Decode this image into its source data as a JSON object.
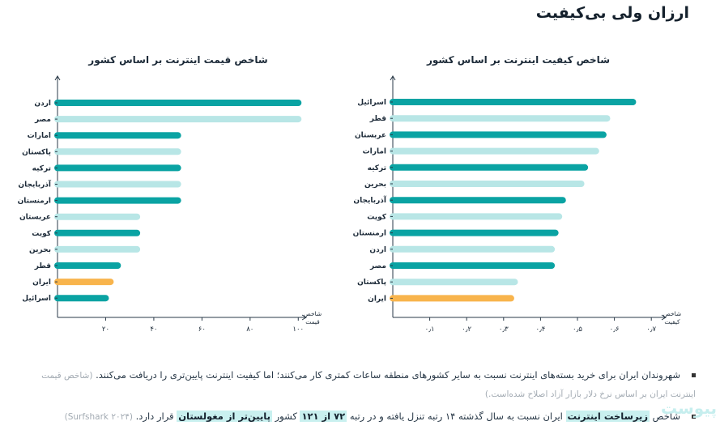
{
  "page_title": "ارزان ولی بی‌کیفیت",
  "colors": {
    "teal": "#0aa3a3",
    "light_teal": "#b8e6e6",
    "orange": "#f8b44c",
    "highlight": "#c9f0ef",
    "axis": "#2a3a48"
  },
  "chart_data": [
    {
      "type": "bar",
      "orientation": "horizontal",
      "title": "شاخص قیمت اینترنت بر اساس کشور",
      "xlabel": "شاخص قیمت",
      "categories": [
        "اردن",
        "مصر",
        "امارات",
        "پاکستان",
        "ترکیه",
        "آذربایجان",
        "ارمنستان",
        "عربستان",
        "کویت",
        "بحرین",
        "قطر",
        "ایران",
        "اسرائیل"
      ],
      "values": [
        100,
        100,
        50,
        50,
        50,
        50,
        50,
        33,
        33,
        33,
        25,
        22,
        20
      ],
      "bar_colors": [
        "teal",
        "light_teal",
        "teal",
        "light_teal",
        "teal",
        "light_teal",
        "teal",
        "light_teal",
        "teal",
        "light_teal",
        "teal",
        "orange",
        "teal"
      ],
      "xticks": [
        "۲۰",
        "۴۰",
        "۶۰",
        "۸۰",
        "۱۰۰"
      ],
      "xtick_values": [
        20,
        40,
        60,
        80,
        100
      ],
      "xlim": [
        0,
        110
      ],
      "grid": false,
      "axis_reversed": false
    },
    {
      "type": "bar",
      "orientation": "horizontal",
      "title": "شاخص کیفیت اینترنت بر اساس کشور",
      "xlabel": "شاخص کیفیت",
      "categories": [
        "اسرائیل",
        "قطر",
        "عربستان",
        "امارات",
        "ترکیه",
        "بحرین",
        "آذربایجان",
        "کویت",
        "ارمنستان",
        "اردن",
        "مصر",
        "پاکستان",
        "ایران"
      ],
      "values": [
        0.65,
        0.58,
        0.57,
        0.55,
        0.52,
        0.51,
        0.46,
        0.45,
        0.44,
        0.43,
        0.43,
        0.33,
        0.32
      ],
      "bar_colors": [
        "teal",
        "light_teal",
        "teal",
        "light_teal",
        "teal",
        "light_teal",
        "teal",
        "light_teal",
        "teal",
        "light_teal",
        "teal",
        "light_teal",
        "orange"
      ],
      "xticks": [
        "۰٫۱",
        "۰٫۲",
        "۰٫۳",
        "۰٫۴",
        "۰٫۵",
        "۰٫۶",
        "۰٫۷"
      ],
      "xtick_values": [
        0.1,
        0.2,
        0.3,
        0.4,
        0.5,
        0.6,
        0.7
      ],
      "xlim": [
        0,
        0.75
      ],
      "grid": false,
      "axis_reversed": false
    }
  ],
  "notes": {
    "b1_text": "شهروندان ایران برای خرید بسته‌های اینترنت نسبت به سایر کشورهای منطقه ساعات کمتری کار می‌کنند؛ اما کیفیت اینترنت پایین‌تری را دریافت می‌کنند.",
    "b1_muted": "(شاخص قیمت اینترنت ایران بر اساس نرخ دلار بازار آزاد اصلاح شده‌است.)",
    "b2_pre": "شاخص",
    "b2_bold": "زیرساخت اینترنت",
    "b2_mid1": "ایران نسبت به سال گذشته ۱۴ رتبه تنزل یافته و در رتبه",
    "b2_rank": "۷۲ از ۱۲۱",
    "b2_mid2": "کشور",
    "b2_lower": "پایین‌تر از مغولستان",
    "b2_end": "قرار دارد.",
    "b2_source": "(Surfshark ۲۰۲۴)"
  },
  "watermark": "پیوست"
}
